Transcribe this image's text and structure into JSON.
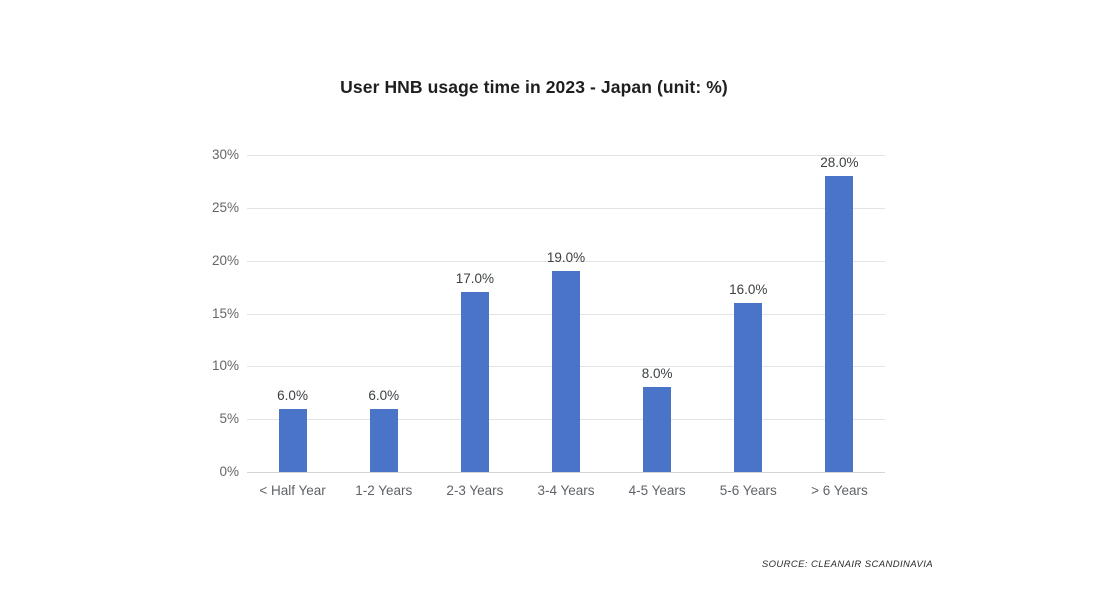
{
  "title": "User HNB usage time in 2023 - Japan (unit: %)",
  "source": "SOURCE: CLEANAIR SCANDINAVIA",
  "colors": {
    "bar": "#4a74c8",
    "gridline": "#e4e4e4",
    "axis_text": "#666666",
    "category_text": "#5f6368",
    "value_label_text": "#3c4043"
  },
  "chart_data": {
    "type": "bar",
    "title": "User HNB usage time in 2023 - Japan (unit: %)",
    "categories": [
      "< Half Year",
      "1-2 Years",
      "2-3 Years",
      "3-4 Years",
      "4-5 Years",
      "5-6 Years",
      "> 6 Years"
    ],
    "values": [
      6.0,
      6.0,
      17.0,
      19.0,
      8.0,
      16.0,
      28.0
    ],
    "value_labels": [
      "6.0%",
      "6.0%",
      "17.0%",
      "19.0%",
      "8.0%",
      "16.0%",
      "28.0%"
    ],
    "xlabel": "",
    "ylabel": "",
    "ylim": [
      0,
      30
    ],
    "ytick_step": 5,
    "ytick_labels": [
      "0%",
      "5%",
      "10%",
      "15%",
      "20%",
      "25%",
      "30%"
    ],
    "grid": true,
    "legend": "none",
    "bar_color": "#4a74c8"
  }
}
